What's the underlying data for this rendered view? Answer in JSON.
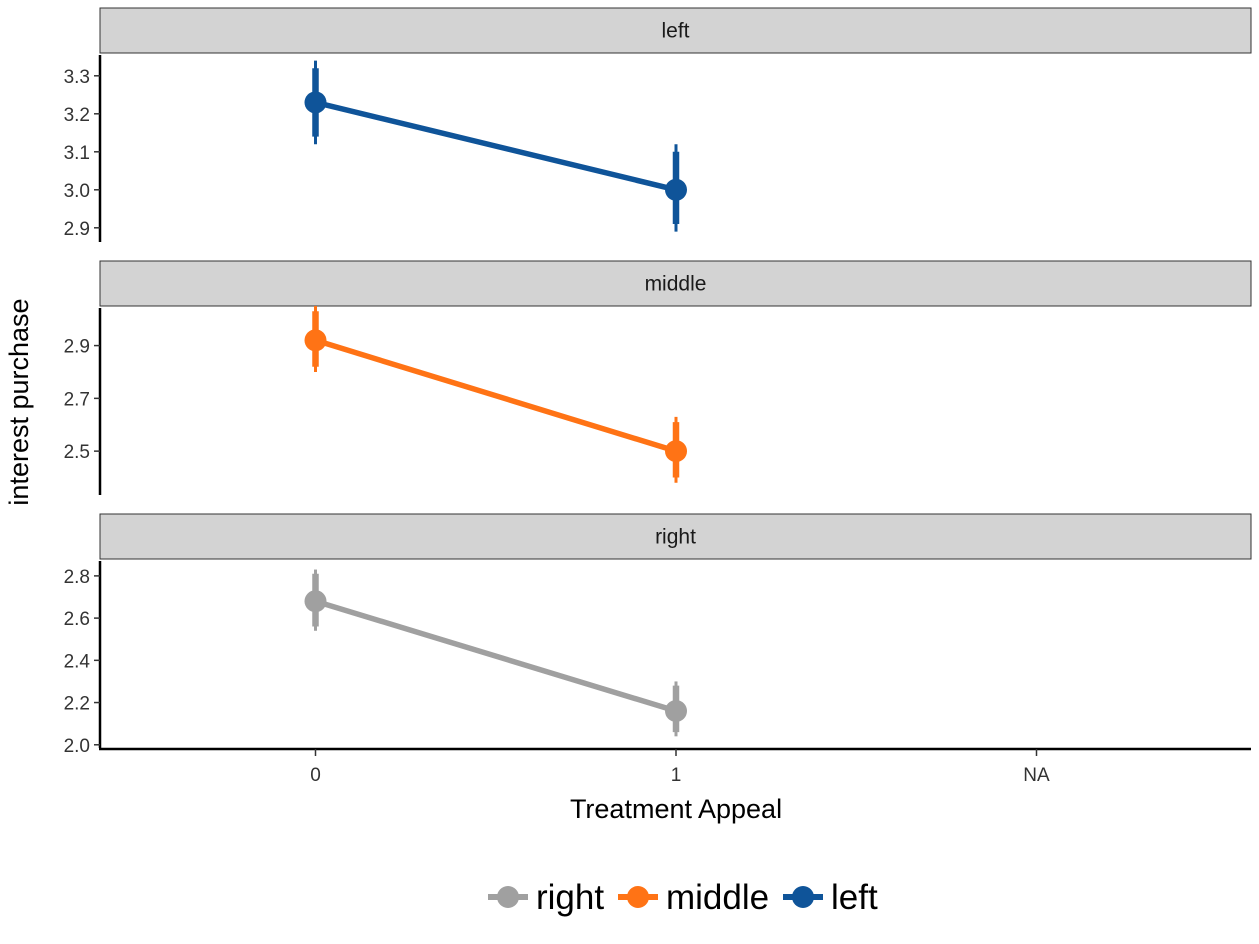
{
  "chart_data": {
    "type": "line",
    "facet_by": "series",
    "categories": [
      "0",
      "1",
      "NA"
    ],
    "xlabel": "Treatment Appeal",
    "ylabel": "interest purchase",
    "legend_position": "bottom",
    "legend_order": [
      "right",
      "middle",
      "left"
    ],
    "grid": false,
    "panels": [
      {
        "strip": "left",
        "color": "#0F5499",
        "ylim": [
          2.86,
          3.36
        ],
        "yticks": [
          "2.9",
          "3.0",
          "3.1",
          "3.2",
          "3.3"
        ],
        "points": [
          {
            "x": "0",
            "y": 3.23,
            "inner": [
              3.14,
              3.32
            ],
            "outer": [
              3.12,
              3.34
            ]
          },
          {
            "x": "1",
            "y": 3.0,
            "inner": [
              2.91,
              3.1
            ],
            "outer": [
              2.89,
              3.12
            ]
          }
        ]
      },
      {
        "strip": "middle",
        "color": "#FF7315",
        "ylim": [
          2.33,
          3.05
        ],
        "yticks": [
          "2.5",
          "2.7",
          "2.9"
        ],
        "points": [
          {
            "x": "0",
            "y": 2.92,
            "inner": [
              2.82,
              3.03
            ],
            "outer": [
              2.8,
              3.05
            ]
          },
          {
            "x": "1",
            "y": 2.5,
            "inner": [
              2.4,
              2.61
            ],
            "outer": [
              2.38,
              2.63
            ]
          }
        ]
      },
      {
        "strip": "right",
        "color": "#A0A0A0",
        "ylim": [
          1.98,
          2.88
        ],
        "yticks": [
          "2.0",
          "2.2",
          "2.4",
          "2.6",
          "2.8"
        ],
        "points": [
          {
            "x": "0",
            "y": 2.68,
            "inner": [
              2.56,
              2.81
            ],
            "outer": [
              2.54,
              2.83
            ]
          },
          {
            "x": "1",
            "y": 2.16,
            "inner": [
              2.06,
              2.28
            ],
            "outer": [
              2.04,
              2.3
            ]
          }
        ]
      }
    ]
  },
  "legend": [
    {
      "label": "right",
      "color": "#A0A0A0"
    },
    {
      "label": "middle",
      "color": "#FF7315"
    },
    {
      "label": "left",
      "color": "#0F5499"
    }
  ]
}
